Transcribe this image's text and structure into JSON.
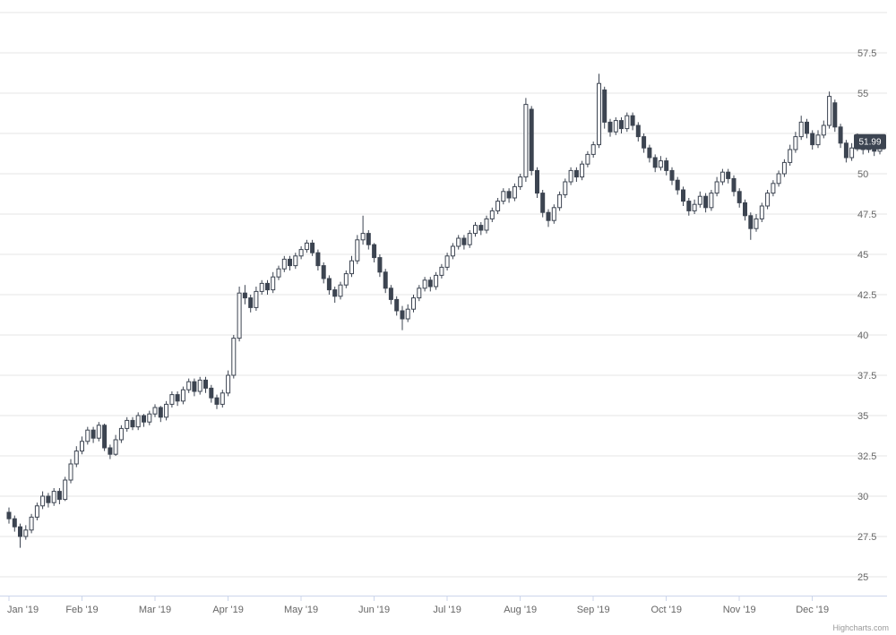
{
  "page": {
    "background": "#ffffff"
  },
  "chart": {
    "credits_label": "Highcharts.com",
    "last_price_label": "51.99"
  },
  "chart_data": {
    "type": "candlestick",
    "title": "",
    "x_labels": [
      "Jan '19",
      "Feb '19",
      "Mar '19",
      "Apr '19",
      "May '19",
      "Jun '19",
      "Jul '19",
      "Aug '19",
      "Sep '19",
      "Oct '19",
      "Nov '19",
      "Dec '19"
    ],
    "points_per_month": 13,
    "ylim": [
      25,
      60
    ],
    "y_grid_values": [
      25,
      27.5,
      30,
      32.5,
      35,
      37.5,
      40,
      42.5,
      45,
      47.5,
      50,
      52.5,
      55,
      57.5,
      60
    ],
    "y_label_values": [
      25,
      27.5,
      30,
      32.5,
      35,
      37.5,
      40,
      42.5,
      45,
      47.5,
      50,
      55,
      57.5
    ],
    "grid_color": "#e6e6e6",
    "axis_line_color": "#ccd6eb",
    "label_color": "#666666",
    "candle_color": "#3c4451",
    "up_fill": "#ffffff",
    "last_price": 51.99,
    "legend": "off",
    "series": [
      {
        "name": "Price",
        "ohlc": [
          [
            29.0,
            29.3,
            28.3,
            28.6
          ],
          [
            28.6,
            28.8,
            27.8,
            28.1
          ],
          [
            28.1,
            28.3,
            26.8,
            27.5
          ],
          [
            27.5,
            28.2,
            27.3,
            27.9
          ],
          [
            27.9,
            28.9,
            27.7,
            28.7
          ],
          [
            28.7,
            29.6,
            28.5,
            29.4
          ],
          [
            29.4,
            30.3,
            29.2,
            30.0
          ],
          [
            30.0,
            30.2,
            29.3,
            29.6
          ],
          [
            29.6,
            30.5,
            29.4,
            30.3
          ],
          [
            30.3,
            30.5,
            29.5,
            29.8
          ],
          [
            29.8,
            31.2,
            29.7,
            31.0
          ],
          [
            31.0,
            32.3,
            30.8,
            32.0
          ],
          [
            32.0,
            33.1,
            31.8,
            32.8
          ],
          [
            32.8,
            33.7,
            32.6,
            33.4
          ],
          [
            33.4,
            34.3,
            33.2,
            34.1
          ],
          [
            34.1,
            34.3,
            33.3,
            33.6
          ],
          [
            33.6,
            34.6,
            33.4,
            34.4
          ],
          [
            34.4,
            34.5,
            32.8,
            33.0
          ],
          [
            33.0,
            33.2,
            32.3,
            32.6
          ],
          [
            32.6,
            33.8,
            32.5,
            33.5
          ],
          [
            33.5,
            34.4,
            33.3,
            34.2
          ],
          [
            34.2,
            34.9,
            34.0,
            34.7
          ],
          [
            34.7,
            34.9,
            34.1,
            34.3
          ],
          [
            34.3,
            35.2,
            34.1,
            35.0
          ],
          [
            35.0,
            35.1,
            34.3,
            34.6
          ],
          [
            34.6,
            35.3,
            34.4,
            35.1
          ],
          [
            35.1,
            35.7,
            34.9,
            35.5
          ],
          [
            35.5,
            35.6,
            34.6,
            34.9
          ],
          [
            34.9,
            35.9,
            34.7,
            35.7
          ],
          [
            35.7,
            36.5,
            35.5,
            36.3
          ],
          [
            36.3,
            36.5,
            35.6,
            35.9
          ],
          [
            35.9,
            36.8,
            35.7,
            36.6
          ],
          [
            36.6,
            37.3,
            36.4,
            37.1
          ],
          [
            37.1,
            37.3,
            36.2,
            36.5
          ],
          [
            36.5,
            37.4,
            36.3,
            37.2
          ],
          [
            37.2,
            37.4,
            36.4,
            36.7
          ],
          [
            36.7,
            36.9,
            35.8,
            36.1
          ],
          [
            36.1,
            36.3,
            35.4,
            35.7
          ],
          [
            35.7,
            36.6,
            35.5,
            36.4
          ],
          [
            36.4,
            37.8,
            36.2,
            37.5
          ],
          [
            37.5,
            40.0,
            37.3,
            39.8
          ],
          [
            39.8,
            43.0,
            39.6,
            42.6
          ],
          [
            42.6,
            43.1,
            41.9,
            42.3
          ],
          [
            42.3,
            42.5,
            41.4,
            41.7
          ],
          [
            41.7,
            43.0,
            41.5,
            42.7
          ],
          [
            42.7,
            43.4,
            42.5,
            43.2
          ],
          [
            43.2,
            43.4,
            42.5,
            42.8
          ],
          [
            42.8,
            43.9,
            42.6,
            43.6
          ],
          [
            43.6,
            44.3,
            43.4,
            44.1
          ],
          [
            44.1,
            44.9,
            43.9,
            44.7
          ],
          [
            44.7,
            44.9,
            44.0,
            44.3
          ],
          [
            44.3,
            45.1,
            44.1,
            44.9
          ],
          [
            44.9,
            45.5,
            44.7,
            45.3
          ],
          [
            45.3,
            45.9,
            45.1,
            45.7
          ],
          [
            45.7,
            45.9,
            44.9,
            45.1
          ],
          [
            45.1,
            45.3,
            44.0,
            44.3
          ],
          [
            44.3,
            44.5,
            43.2,
            43.5
          ],
          [
            43.5,
            43.7,
            42.5,
            42.8
          ],
          [
            42.8,
            43.0,
            42.0,
            42.4
          ],
          [
            42.4,
            43.3,
            42.2,
            43.1
          ],
          [
            43.1,
            44.0,
            42.9,
            43.8
          ],
          [
            43.8,
            44.9,
            43.6,
            44.6
          ],
          [
            44.6,
            46.2,
            44.4,
            45.9
          ],
          [
            45.9,
            47.4,
            45.6,
            46.3
          ],
          [
            46.3,
            46.5,
            45.3,
            45.6
          ],
          [
            45.6,
            45.7,
            44.5,
            44.8
          ],
          [
            44.8,
            45.0,
            43.6,
            43.9
          ],
          [
            43.9,
            44.1,
            42.6,
            42.9
          ],
          [
            42.9,
            43.1,
            41.9,
            42.2
          ],
          [
            42.2,
            42.4,
            41.2,
            41.5
          ],
          [
            41.5,
            41.8,
            40.3,
            41.0
          ],
          [
            41.0,
            41.9,
            40.8,
            41.6
          ],
          [
            41.6,
            42.5,
            41.4,
            42.3
          ],
          [
            42.3,
            43.1,
            42.1,
            42.9
          ],
          [
            42.9,
            43.6,
            42.7,
            43.4
          ],
          [
            43.4,
            43.6,
            42.7,
            43.0
          ],
          [
            43.0,
            43.9,
            42.8,
            43.7
          ],
          [
            43.7,
            44.4,
            43.5,
            44.2
          ],
          [
            44.2,
            45.1,
            44.0,
            44.9
          ],
          [
            44.9,
            45.7,
            44.7,
            45.5
          ],
          [
            45.5,
            46.2,
            45.3,
            46.0
          ],
          [
            46.0,
            46.2,
            45.3,
            45.6
          ],
          [
            45.6,
            46.5,
            45.4,
            46.3
          ],
          [
            46.3,
            47.0,
            46.1,
            46.8
          ],
          [
            46.8,
            47.0,
            46.2,
            46.5
          ],
          [
            46.5,
            47.4,
            46.3,
            47.2
          ],
          [
            47.2,
            47.9,
            47.0,
            47.7
          ],
          [
            47.7,
            48.5,
            47.5,
            48.3
          ],
          [
            48.3,
            49.1,
            48.1,
            48.9
          ],
          [
            48.9,
            49.1,
            48.2,
            48.5
          ],
          [
            48.5,
            49.4,
            48.3,
            49.2
          ],
          [
            49.2,
            50.0,
            49.0,
            49.8
          ],
          [
            49.8,
            54.7,
            49.5,
            54.3
          ],
          [
            54.0,
            54.2,
            49.9,
            50.2
          ],
          [
            50.2,
            50.4,
            48.5,
            48.8
          ],
          [
            48.8,
            49.0,
            47.3,
            47.6
          ],
          [
            47.6,
            47.8,
            46.7,
            47.1
          ],
          [
            47.1,
            48.1,
            46.9,
            47.9
          ],
          [
            47.9,
            48.9,
            47.7,
            48.7
          ],
          [
            48.7,
            49.7,
            48.5,
            49.5
          ],
          [
            49.5,
            50.4,
            49.3,
            50.2
          ],
          [
            50.2,
            50.4,
            49.5,
            49.8
          ],
          [
            49.8,
            50.8,
            49.6,
            50.6
          ],
          [
            50.6,
            51.4,
            50.4,
            51.2
          ],
          [
            51.2,
            52.0,
            51.0,
            51.8
          ],
          [
            51.8,
            56.2,
            51.6,
            55.6
          ],
          [
            55.2,
            55.4,
            52.8,
            53.2
          ],
          [
            53.2,
            53.4,
            52.3,
            52.6
          ],
          [
            52.6,
            53.5,
            52.4,
            53.3
          ],
          [
            53.3,
            53.5,
            52.5,
            52.8
          ],
          [
            52.8,
            53.8,
            52.6,
            53.6
          ],
          [
            53.6,
            53.8,
            52.7,
            53.0
          ],
          [
            53.0,
            53.2,
            52.0,
            52.3
          ],
          [
            52.3,
            52.5,
            51.3,
            51.6
          ],
          [
            51.6,
            51.8,
            50.7,
            51.0
          ],
          [
            51.0,
            51.2,
            50.1,
            50.4
          ],
          [
            50.4,
            51.1,
            50.2,
            50.8
          ],
          [
            50.8,
            51.0,
            49.9,
            50.2
          ],
          [
            50.2,
            50.4,
            49.3,
            49.6
          ],
          [
            49.6,
            49.8,
            48.7,
            49.0
          ],
          [
            49.0,
            49.2,
            48.0,
            48.3
          ],
          [
            48.3,
            48.5,
            47.4,
            47.7
          ],
          [
            47.7,
            48.4,
            47.5,
            48.1
          ],
          [
            48.1,
            48.9,
            47.9,
            48.6
          ],
          [
            48.6,
            48.8,
            47.6,
            47.9
          ],
          [
            47.9,
            49.0,
            47.7,
            48.8
          ],
          [
            48.8,
            49.8,
            48.6,
            49.5
          ],
          [
            49.5,
            50.3,
            49.3,
            50.1
          ],
          [
            50.1,
            50.3,
            49.4,
            49.7
          ],
          [
            49.7,
            49.9,
            48.6,
            48.9
          ],
          [
            48.9,
            49.1,
            47.9,
            48.2
          ],
          [
            48.2,
            48.4,
            47.1,
            47.4
          ],
          [
            47.4,
            47.6,
            45.9,
            46.6
          ],
          [
            46.6,
            47.5,
            46.4,
            47.2
          ],
          [
            47.2,
            48.2,
            47.0,
            48.0
          ],
          [
            48.0,
            49.0,
            47.8,
            48.8
          ],
          [
            48.8,
            49.6,
            48.6,
            49.4
          ],
          [
            49.4,
            50.2,
            49.2,
            50.0
          ],
          [
            50.0,
            50.9,
            49.8,
            50.7
          ],
          [
            50.7,
            51.8,
            50.5,
            51.5
          ],
          [
            51.5,
            52.6,
            51.3,
            52.3
          ],
          [
            52.3,
            53.6,
            52.1,
            53.2
          ],
          [
            53.2,
            53.4,
            52.2,
            52.5
          ],
          [
            52.5,
            52.7,
            51.5,
            51.8
          ],
          [
            51.8,
            52.7,
            51.6,
            52.4
          ],
          [
            52.4,
            53.3,
            52.2,
            53.0
          ],
          [
            53.0,
            55.1,
            52.8,
            54.8
          ],
          [
            54.4,
            54.6,
            52.6,
            52.9
          ],
          [
            52.9,
            53.1,
            51.6,
            51.9
          ],
          [
            51.9,
            52.1,
            50.7,
            51.0
          ],
          [
            51.0,
            51.9,
            50.8,
            51.6
          ],
          [
            51.6,
            52.5,
            51.4,
            52.2
          ],
          [
            52.2,
            52.4,
            51.2,
            51.5
          ],
          [
            51.5,
            52.3,
            51.3,
            52.0
          ],
          [
            52.0,
            52.2,
            51.1,
            51.4
          ],
          [
            51.4,
            52.2,
            51.2,
            51.99
          ]
        ]
      }
    ]
  }
}
